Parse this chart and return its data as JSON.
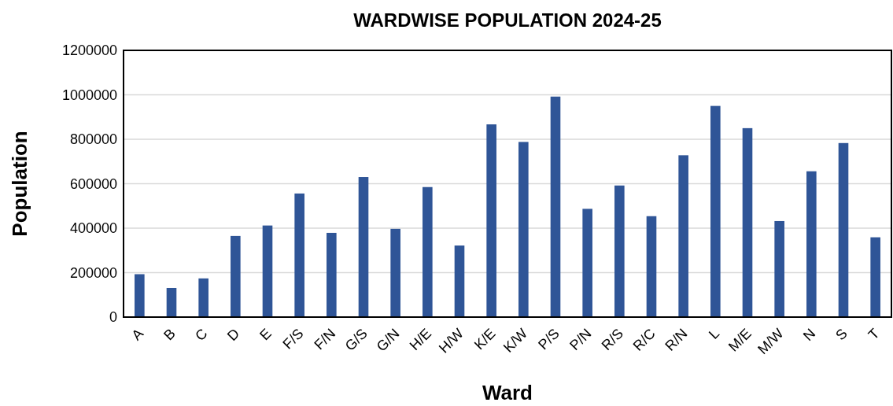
{
  "chart_data": {
    "type": "bar",
    "title": "WARDWISE POPULATION 2024-25",
    "xlabel": "Ward",
    "ylabel": "Population",
    "categories": [
      "A",
      "B",
      "C",
      "D",
      "E",
      "F/S",
      "F/N",
      "G/S",
      "G/N",
      "H/E",
      "H/W",
      "K/E",
      "K/W",
      "P/S",
      "P/N",
      "R/S",
      "R/C",
      "R/N",
      "L",
      "M/E",
      "M/W",
      "N",
      "S",
      "T"
    ],
    "values": [
      193000,
      131000,
      174000,
      365000,
      412000,
      556000,
      379000,
      630000,
      397000,
      585000,
      322000,
      867000,
      788000,
      992000,
      487000,
      592000,
      454000,
      728000,
      950000,
      850000,
      432000,
      656000,
      783000,
      359000
    ],
    "color": "#2f5597",
    "ylim": [
      0,
      1200000
    ],
    "yticks": [
      0,
      200000,
      400000,
      600000,
      800000,
      1000000,
      1200000
    ],
    "grid": "y"
  }
}
